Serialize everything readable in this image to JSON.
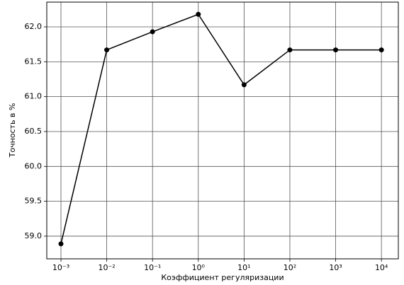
{
  "chart_data": {
    "type": "line",
    "xlabel": "Коэффициент регуляризации",
    "ylabel": "Точность в %",
    "x": [
      0.001,
      0.01,
      0.1,
      1,
      10,
      100,
      1000,
      10000
    ],
    "series": [
      {
        "color": "#000000",
        "values": [
          58.89,
          61.67,
          61.93,
          62.18,
          61.17,
          61.67,
          61.67,
          61.67
        ]
      }
    ],
    "xscale": "log",
    "xlim": [
      0.00049,
      23400
    ],
    "xticks": [
      {
        "value": 0.001,
        "label": "10⁻³"
      },
      {
        "value": 0.01,
        "label": "10⁻²"
      },
      {
        "value": 0.1,
        "label": "10⁻¹"
      },
      {
        "value": 1,
        "label": "10⁰"
      },
      {
        "value": 10,
        "label": "10¹"
      },
      {
        "value": 100,
        "label": "10²"
      },
      {
        "value": 1000,
        "label": "10³"
      },
      {
        "value": 10000,
        "label": "10⁴"
      }
    ],
    "ylim": [
      58.675,
      62.355
    ],
    "yticks": [
      {
        "value": 59,
        "label": "59.0"
      },
      59.5,
      {
        "value": 60,
        "label": "60.0"
      },
      60.5,
      {
        "value": 61,
        "label": "61.0"
      },
      61.5,
      {
        "value": 62,
        "label": "62.0"
      }
    ],
    "grid": true
  }
}
